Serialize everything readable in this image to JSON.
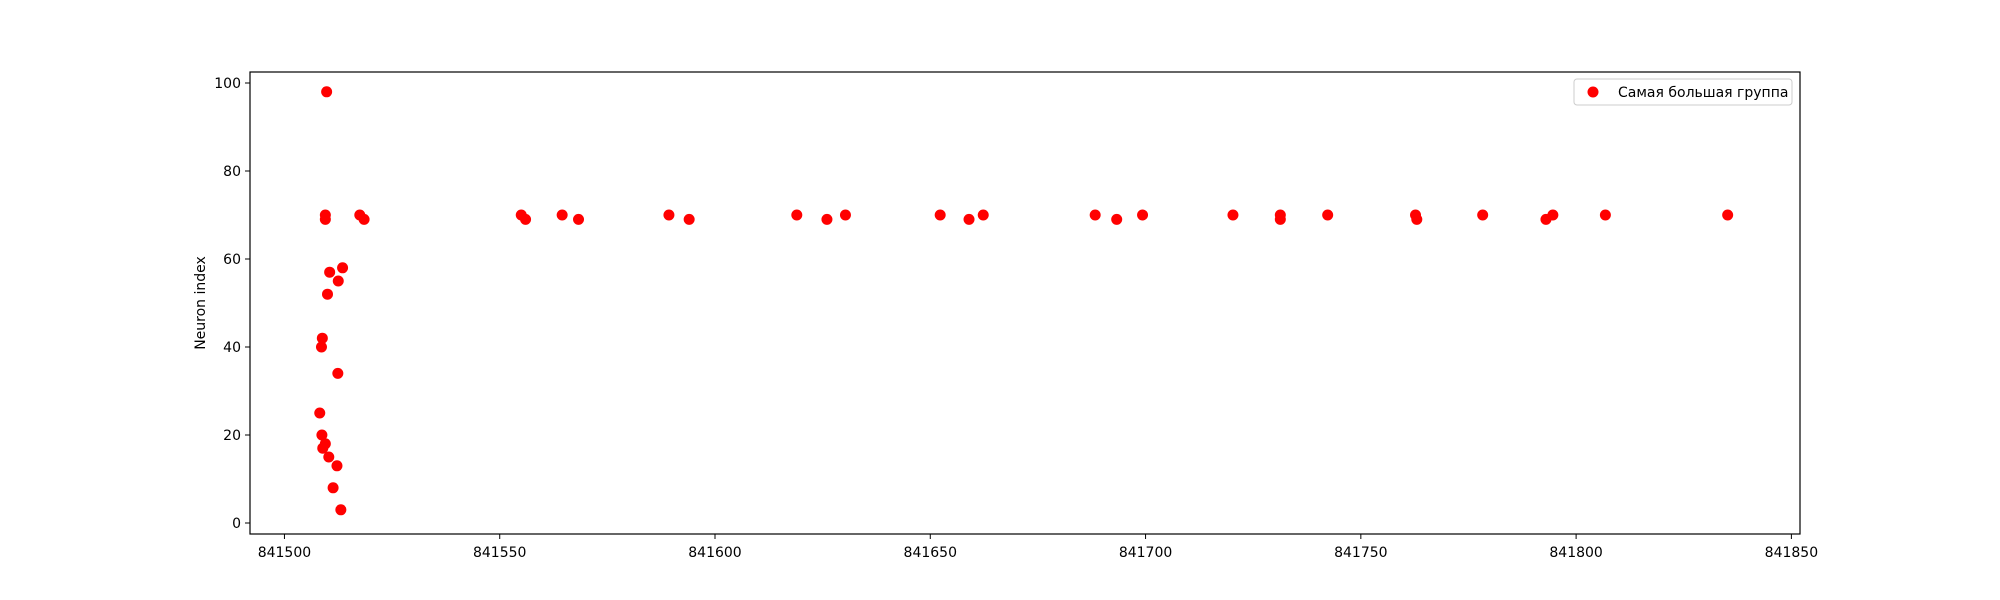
{
  "chart_data": {
    "type": "scatter",
    "title": "",
    "xlabel": "",
    "ylabel": "Neuron index",
    "xlim": [
      841492,
      841852
    ],
    "ylim": [
      -2.5,
      102.5
    ],
    "xticks": [
      841500,
      841550,
      841600,
      841650,
      841700,
      841750,
      841800,
      841850
    ],
    "xtick_labels": [
      "841500",
      "841550",
      "841600",
      "841650",
      "841700",
      "841750",
      "841800",
      "841850"
    ],
    "yticks": [
      0,
      20,
      40,
      60,
      80,
      100
    ],
    "ytick_labels": [
      "0",
      "20",
      "40",
      "60",
      "80",
      "100"
    ],
    "grid": false,
    "legend": {
      "position": "top-right",
      "entries": [
        "Самая большая группа"
      ]
    },
    "colors": {
      "series": "#ff0000",
      "axis": "#000000",
      "legend_border": "#cccccc"
    },
    "series": [
      {
        "name": "Самая большая группа",
        "points": [
          [
            841509.8,
            98
          ],
          [
            841509.5,
            70
          ],
          [
            841509.5,
            69
          ],
          [
            841510.5,
            57
          ],
          [
            841510,
            52
          ],
          [
            841513.5,
            58
          ],
          [
            841512.5,
            55
          ],
          [
            841508.8,
            42
          ],
          [
            841508.6,
            40
          ],
          [
            841512.4,
            34
          ],
          [
            841508.2,
            25
          ],
          [
            841508.7,
            20
          ],
          [
            841509.5,
            18
          ],
          [
            841508.9,
            17
          ],
          [
            841510.3,
            15
          ],
          [
            841512.2,
            13
          ],
          [
            841511.3,
            8
          ],
          [
            841513.1,
            3
          ],
          [
            841517.5,
            70
          ],
          [
            841518.5,
            69
          ],
          [
            841555,
            70
          ],
          [
            841556,
            69
          ],
          [
            841564.5,
            70
          ],
          [
            841568.3,
            69
          ],
          [
            841589.3,
            70
          ],
          [
            841594,
            69
          ],
          [
            841619,
            70
          ],
          [
            841626,
            69
          ],
          [
            841630.3,
            70
          ],
          [
            841652.3,
            70
          ],
          [
            841659,
            69
          ],
          [
            841662.3,
            70
          ],
          [
            841688.3,
            70
          ],
          [
            841693.3,
            69
          ],
          [
            841699.3,
            70
          ],
          [
            841720.3,
            70
          ],
          [
            841731.3,
            70
          ],
          [
            841731.3,
            69
          ],
          [
            841742.3,
            70
          ],
          [
            841762.7,
            70
          ],
          [
            841763,
            69
          ],
          [
            841778.3,
            70
          ],
          [
            841793,
            69
          ],
          [
            841794.6,
            70
          ],
          [
            841806.8,
            70
          ],
          [
            841835.2,
            70
          ]
        ]
      }
    ]
  }
}
